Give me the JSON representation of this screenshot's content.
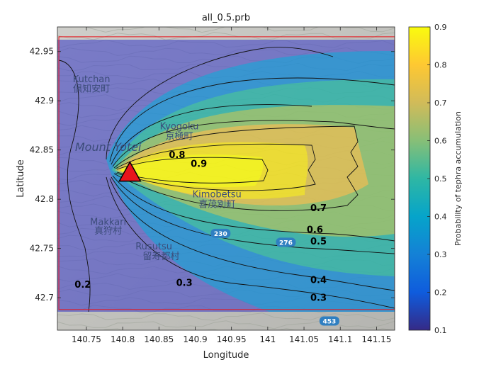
{
  "chart_data": {
    "type": "heatmap",
    "title": "all_0.5.prb",
    "xlabel": "Longitude",
    "ylabel": "Latitude",
    "xlim": [
      140.71,
      141.175
    ],
    "ylim": [
      42.667,
      42.975
    ],
    "xticks": [
      140.75,
      140.8,
      140.85,
      140.9,
      140.95,
      141,
      141.05,
      141.1,
      141.15
    ],
    "xtick_labels": [
      "140.75",
      "140.8",
      "140.85",
      "140.9",
      "140.95",
      "141",
      "141.05",
      "141.1",
      "141.15"
    ],
    "yticks": [
      42.7,
      42.75,
      42.8,
      42.85,
      42.9,
      42.95
    ],
    "ytick_labels": [
      "42.7",
      "42.75",
      "42.8",
      "42.85",
      "42.9",
      "42.95"
    ],
    "colorbar": {
      "label": "Probability of tephra accumulation",
      "range": [
        0.1,
        0.9
      ],
      "ticks": [
        0.1,
        0.2,
        0.3,
        0.4,
        0.5,
        0.6,
        0.7,
        0.8,
        0.9
      ],
      "tick_labels": [
        "0.1",
        "0.2",
        "0.3",
        "0.4",
        "0.5",
        "0.6",
        "0.7",
        "0.8",
        "0.9"
      ],
      "colormap": "parula",
      "stops": [
        "#352a87",
        "#0f5cdd",
        "#1481d6",
        "#06a4ca",
        "#2eb7a4",
        "#87bf77",
        "#d1bb59",
        "#fec832",
        "#f9fb0e"
      ]
    },
    "vent": {
      "lon": 140.81,
      "lat": 42.827,
      "marker": "triangle",
      "color": "#e8141c"
    },
    "domain_box": {
      "lon": [
        140.712,
        141.175
      ],
      "lat": [
        42.688,
        42.965
      ],
      "color": "#e8141c"
    },
    "contour_labels": [
      {
        "text": "0.8",
        "lon": 140.875,
        "lat": 42.842
      },
      {
        "text": "0.9",
        "lon": 140.905,
        "lat": 42.833
      },
      {
        "text": "0.7",
        "lon": 141.07,
        "lat": 42.788
      },
      {
        "text": "0.6",
        "lon": 141.065,
        "lat": 42.766
      },
      {
        "text": "0.5",
        "lon": 141.07,
        "lat": 42.754
      },
      {
        "text": "0.4",
        "lon": 141.07,
        "lat": 42.715
      },
      {
        "text": "0.3",
        "lon": 140.885,
        "lat": 42.712
      },
      {
        "text": "0.3",
        "lon": 141.07,
        "lat": 42.697
      },
      {
        "text": "0.2",
        "lon": 140.745,
        "lat": 42.71
      }
    ]
  },
  "map_labels": [
    {
      "text": "Kutchan",
      "lon": 140.757,
      "lat": 42.919,
      "style": "place"
    },
    {
      "text": "倶知安町",
      "lon": 140.757,
      "lat": 42.909,
      "style": "place-jp"
    },
    {
      "text": "Kyogoku",
      "lon": 140.878,
      "lat": 42.871,
      "style": "place"
    },
    {
      "text": "京極町",
      "lon": 140.878,
      "lat": 42.861,
      "style": "place-jp"
    },
    {
      "text": "Mount Yotei",
      "lon": 140.78,
      "lat": 42.849,
      "style": "place-big"
    },
    {
      "text": "Kimobetsu",
      "lon": 140.93,
      "lat": 42.802,
      "style": "place"
    },
    {
      "text": "喜茂別町",
      "lon": 140.93,
      "lat": 42.792,
      "style": "place-jp"
    },
    {
      "text": "Makkari",
      "lon": 140.78,
      "lat": 42.774,
      "style": "place"
    },
    {
      "text": "真狩村",
      "lon": 140.78,
      "lat": 42.765,
      "style": "place-jp"
    },
    {
      "text": "Rusutsu",
      "lon": 140.843,
      "lat": 42.749,
      "style": "place"
    },
    {
      "text": "留寿都村",
      "lon": 140.853,
      "lat": 42.739,
      "style": "place-jp"
    }
  ],
  "road_labels": [
    {
      "text": "230",
      "lon": 140.935,
      "lat": 42.765
    },
    {
      "text": "276",
      "lon": 141.025,
      "lat": 42.756
    },
    {
      "text": "453",
      "lon": 141.085,
      "lat": 42.676
    }
  ]
}
